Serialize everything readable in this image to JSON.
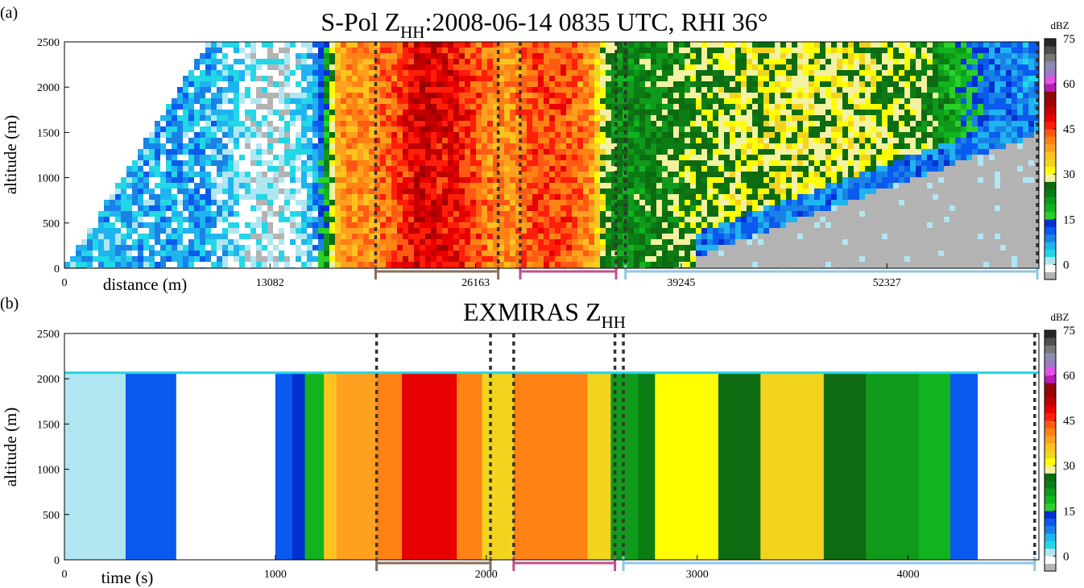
{
  "chart_data": [
    {
      "type": "heatmap",
      "panel_label": "(a)",
      "title_prefix": "S-Pol Z",
      "title_sub": "HH",
      "title_suffix": ":2008-06-14 0835 UTC, RHI 36°",
      "xlabel": "distance (m)",
      "ylabel": "altitude (m)",
      "xlim": [
        0,
        62000
      ],
      "ylim": [
        0,
        2500
      ],
      "x_ticks": [
        0,
        13082,
        26163,
        39245,
        52327
      ],
      "x_tick_labels": [
        "0",
        "13082",
        "26163",
        "39245",
        "52327"
      ],
      "y_ticks": [
        0,
        500,
        1000,
        1500,
        2000,
        2500
      ],
      "y_tick_labels": [
        "0",
        "500",
        "1000",
        "1500",
        "2000",
        "2500"
      ],
      "dashed_lines_x": [
        19800,
        27600,
        29000,
        35100,
        35700,
        61900
      ],
      "segments": [
        {
          "x": [
            19800,
            27600
          ],
          "color": "#8B6E5A"
        },
        {
          "x": [
            29000,
            35100
          ],
          "color": "#C0508C"
        },
        {
          "x": [
            35700,
            61900
          ],
          "color": "#8FC6E6"
        }
      ],
      "reflectivity_profile_dbz": {
        "x": [
          0,
          4000,
          9000,
          12000,
          14000,
          15500,
          16000,
          16500,
          17500,
          19500,
          21000,
          22500,
          25000,
          27500,
          28500,
          30000,
          32000,
          33500,
          34500,
          35500,
          38000,
          41000,
          46000,
          50000,
          55000,
          57500,
          59000,
          62000
        ],
        "dbz": [
          5,
          6,
          7,
          0,
          0,
          3,
          8,
          14,
          40,
          40,
          44,
          50,
          48,
          40,
          40,
          45,
          44,
          40,
          26,
          22,
          25,
          28,
          30,
          30,
          26,
          15,
          10,
          8
        ]
      },
      "low_layer_note": "reflectivity decreases below a rising boundary at large distance"
    },
    {
      "type": "heatmap",
      "panel_label": "(b)",
      "title_prefix": "EXMIRAS Z",
      "title_sub": "HH",
      "title_suffix": "",
      "xlabel": "time (s)",
      "ylabel": "altitude (m)",
      "xlim": [
        0,
        4620
      ],
      "ylim": [
        0,
        2500
      ],
      "x_ticks": [
        0,
        1000,
        2000,
        3000,
        4000
      ],
      "x_tick_labels": [
        "0",
        "1000",
        "2000",
        "3000",
        "4000"
      ],
      "y_ticks": [
        0,
        500,
        1000,
        1500,
        2000,
        2500
      ],
      "y_tick_labels": [
        "0",
        "500",
        "1000",
        "1500",
        "2000",
        "2500"
      ],
      "data_top_altitude": 2080,
      "dashed_lines_x": [
        1480,
        2020,
        2130,
        2610,
        2650,
        4600
      ],
      "segments": [
        {
          "x": [
            1480,
            2020
          ],
          "color": "#8B6E5A"
        },
        {
          "x": [
            2130,
            2610
          ],
          "color": "#C0508C"
        },
        {
          "x": [
            2650,
            4600
          ],
          "color": "#8FC6E6"
        }
      ],
      "bands": [
        {
          "x": [
            0,
            290
          ],
          "dbz": 2
        },
        {
          "x": [
            290,
            390
          ],
          "dbz": 10
        },
        {
          "x": [
            390,
            530
          ],
          "dbz": 12
        },
        {
          "x": [
            530,
            1000
          ],
          "dbz": -2
        },
        {
          "x": [
            1000,
            1080
          ],
          "dbz": 11
        },
        {
          "x": [
            1080,
            1140
          ],
          "dbz": 14
        },
        {
          "x": [
            1140,
            1230
          ],
          "dbz": 18
        },
        {
          "x": [
            1230,
            1290
          ],
          "dbz": 36
        },
        {
          "x": [
            1290,
            1480
          ],
          "dbz": 38
        },
        {
          "x": [
            1480,
            1600
          ],
          "dbz": 42
        },
        {
          "x": [
            1600,
            1860
          ],
          "dbz": 48
        },
        {
          "x": [
            1860,
            1980
          ],
          "dbz": 40
        },
        {
          "x": [
            1980,
            2130
          ],
          "dbz": 33
        },
        {
          "x": [
            2130,
            2300
          ],
          "dbz": 40
        },
        {
          "x": [
            2300,
            2480
          ],
          "dbz": 41
        },
        {
          "x": [
            2480,
            2590
          ],
          "dbz": 34
        },
        {
          "x": [
            2590,
            2720
          ],
          "dbz": 22
        },
        {
          "x": [
            2720,
            2800
          ],
          "dbz": 24
        },
        {
          "x": [
            2800,
            3100
          ],
          "dbz": 31
        },
        {
          "x": [
            3100,
            3300
          ],
          "dbz": 25
        },
        {
          "x": [
            3300,
            3600
          ],
          "dbz": 33
        },
        {
          "x": [
            3600,
            3800
          ],
          "dbz": 25
        },
        {
          "x": [
            3800,
            4050
          ],
          "dbz": 22
        },
        {
          "x": [
            4050,
            4200
          ],
          "dbz": 18
        },
        {
          "x": [
            4200,
            4330
          ],
          "dbz": 12
        },
        {
          "x": [
            4330,
            4620
          ],
          "dbz": -2
        }
      ]
    }
  ],
  "colorbar": {
    "unit": "dBZ",
    "ticks": [
      0,
      15,
      30,
      45,
      60,
      75
    ],
    "tick_labels": [
      "0",
      "15",
      "30",
      "45",
      "60",
      "75"
    ],
    "range": [
      -5,
      75
    ],
    "levels": [
      {
        "from": -5,
        "to": -2.5,
        "color": "#B3B3B3"
      },
      {
        "from": -2.5,
        "to": 0,
        "color": "#FFFFFF"
      },
      {
        "from": 0,
        "to": 2.5,
        "color": "#B0E6F2"
      },
      {
        "from": 2.5,
        "to": 5,
        "color": "#22D7E6"
      },
      {
        "from": 5,
        "to": 7.5,
        "color": "#1FB4F0"
      },
      {
        "from": 7.5,
        "to": 10,
        "color": "#1A82E6"
      },
      {
        "from": 10,
        "to": 12.5,
        "color": "#0A5AF0"
      },
      {
        "from": 12.5,
        "to": 15,
        "color": "#0030D0"
      },
      {
        "from": 15,
        "to": 17.5,
        "color": "#2BD02B"
      },
      {
        "from": 17.5,
        "to": 20,
        "color": "#11B41E"
      },
      {
        "from": 20,
        "to": 22.5,
        "color": "#0F9A1C"
      },
      {
        "from": 22.5,
        "to": 25,
        "color": "#0B7D14"
      },
      {
        "from": 25,
        "to": 27.5,
        "color": "#0D6B12"
      },
      {
        "from": 27.5,
        "to": 30,
        "color": "#F2F2A0"
      },
      {
        "from": 30,
        "to": 32.5,
        "color": "#FFFF00"
      },
      {
        "from": 32.5,
        "to": 35,
        "color": "#F2D41E"
      },
      {
        "from": 35,
        "to": 37.5,
        "color": "#FFC31E"
      },
      {
        "from": 37.5,
        "to": 40,
        "color": "#FFA01E"
      },
      {
        "from": 40,
        "to": 42.5,
        "color": "#FF8214"
      },
      {
        "from": 42.5,
        "to": 45,
        "color": "#FF5A14"
      },
      {
        "from": 45,
        "to": 47.5,
        "color": "#FF1E0A"
      },
      {
        "from": 47.5,
        "to": 50,
        "color": "#E60000"
      },
      {
        "from": 50,
        "to": 52.5,
        "color": "#C00000"
      },
      {
        "from": 52.5,
        "to": 55,
        "color": "#A00000"
      },
      {
        "from": 55,
        "to": 57.5,
        "color": "#8C0A0A"
      },
      {
        "from": 57.5,
        "to": 60,
        "color": "#B41EB4"
      },
      {
        "from": 60,
        "to": 62.5,
        "color": "#E650E6"
      },
      {
        "from": 62.5,
        "to": 65,
        "color": "#A078C8"
      },
      {
        "from": 65,
        "to": 67.5,
        "color": "#8C8CB4"
      },
      {
        "from": 67.5,
        "to": 70,
        "color": "#787878"
      },
      {
        "from": 70,
        "to": 72.5,
        "color": "#505050"
      },
      {
        "from": 72.5,
        "to": 75,
        "color": "#282828"
      }
    ]
  }
}
